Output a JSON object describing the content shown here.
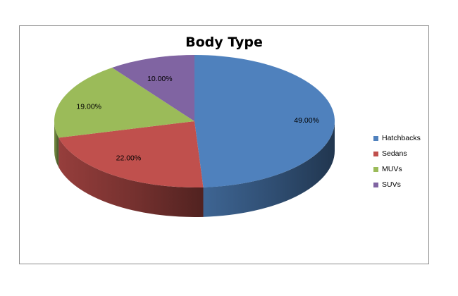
{
  "chart_data": {
    "type": "pie",
    "title": "Body Type",
    "categories": [
      "Hatchbacks",
      "Sedans",
      "MUVs",
      "SUVs"
    ],
    "values": [
      49,
      22,
      19,
      10
    ],
    "labels": [
      "49.00%",
      "22.00%",
      "19.00%",
      "10.00%"
    ],
    "colors": [
      "#4F81BD",
      "#C0504D",
      "#9BBB59",
      "#8064A2"
    ],
    "legend": "right"
  }
}
